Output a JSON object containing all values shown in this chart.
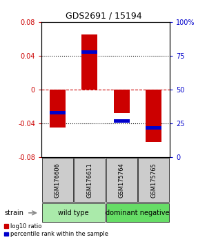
{
  "title": "GDS2691 / 15194",
  "samples": [
    "GSM176606",
    "GSM176611",
    "GSM175764",
    "GSM175765"
  ],
  "log10_ratios": [
    -0.045,
    0.065,
    -0.028,
    -0.062
  ],
  "percentile_ranks": [
    0.33,
    0.78,
    0.27,
    0.22
  ],
  "groups": [
    {
      "label": "wild type",
      "samples": [
        0,
        1
      ],
      "color": "#aaeaaa"
    },
    {
      "label": "dominant negative",
      "samples": [
        2,
        3
      ],
      "color": "#66dd66"
    }
  ],
  "strain_label": "strain",
  "ylim": [
    -0.08,
    0.08
  ],
  "yticks_left": [
    -0.08,
    -0.04,
    0,
    0.04,
    0.08
  ],
  "yticks_right": [
    0,
    25,
    50,
    75,
    100
  ],
  "bar_color": "#cc0000",
  "percentile_color": "#0000cc",
  "zero_line_color": "#cc0000",
  "label_color_left": "#cc0000",
  "label_color_right": "#0000cc",
  "background_color": "#ffffff",
  "sample_box_color": "#cccccc",
  "legend_red": "log10 ratio",
  "legend_blue": "percentile rank within the sample"
}
